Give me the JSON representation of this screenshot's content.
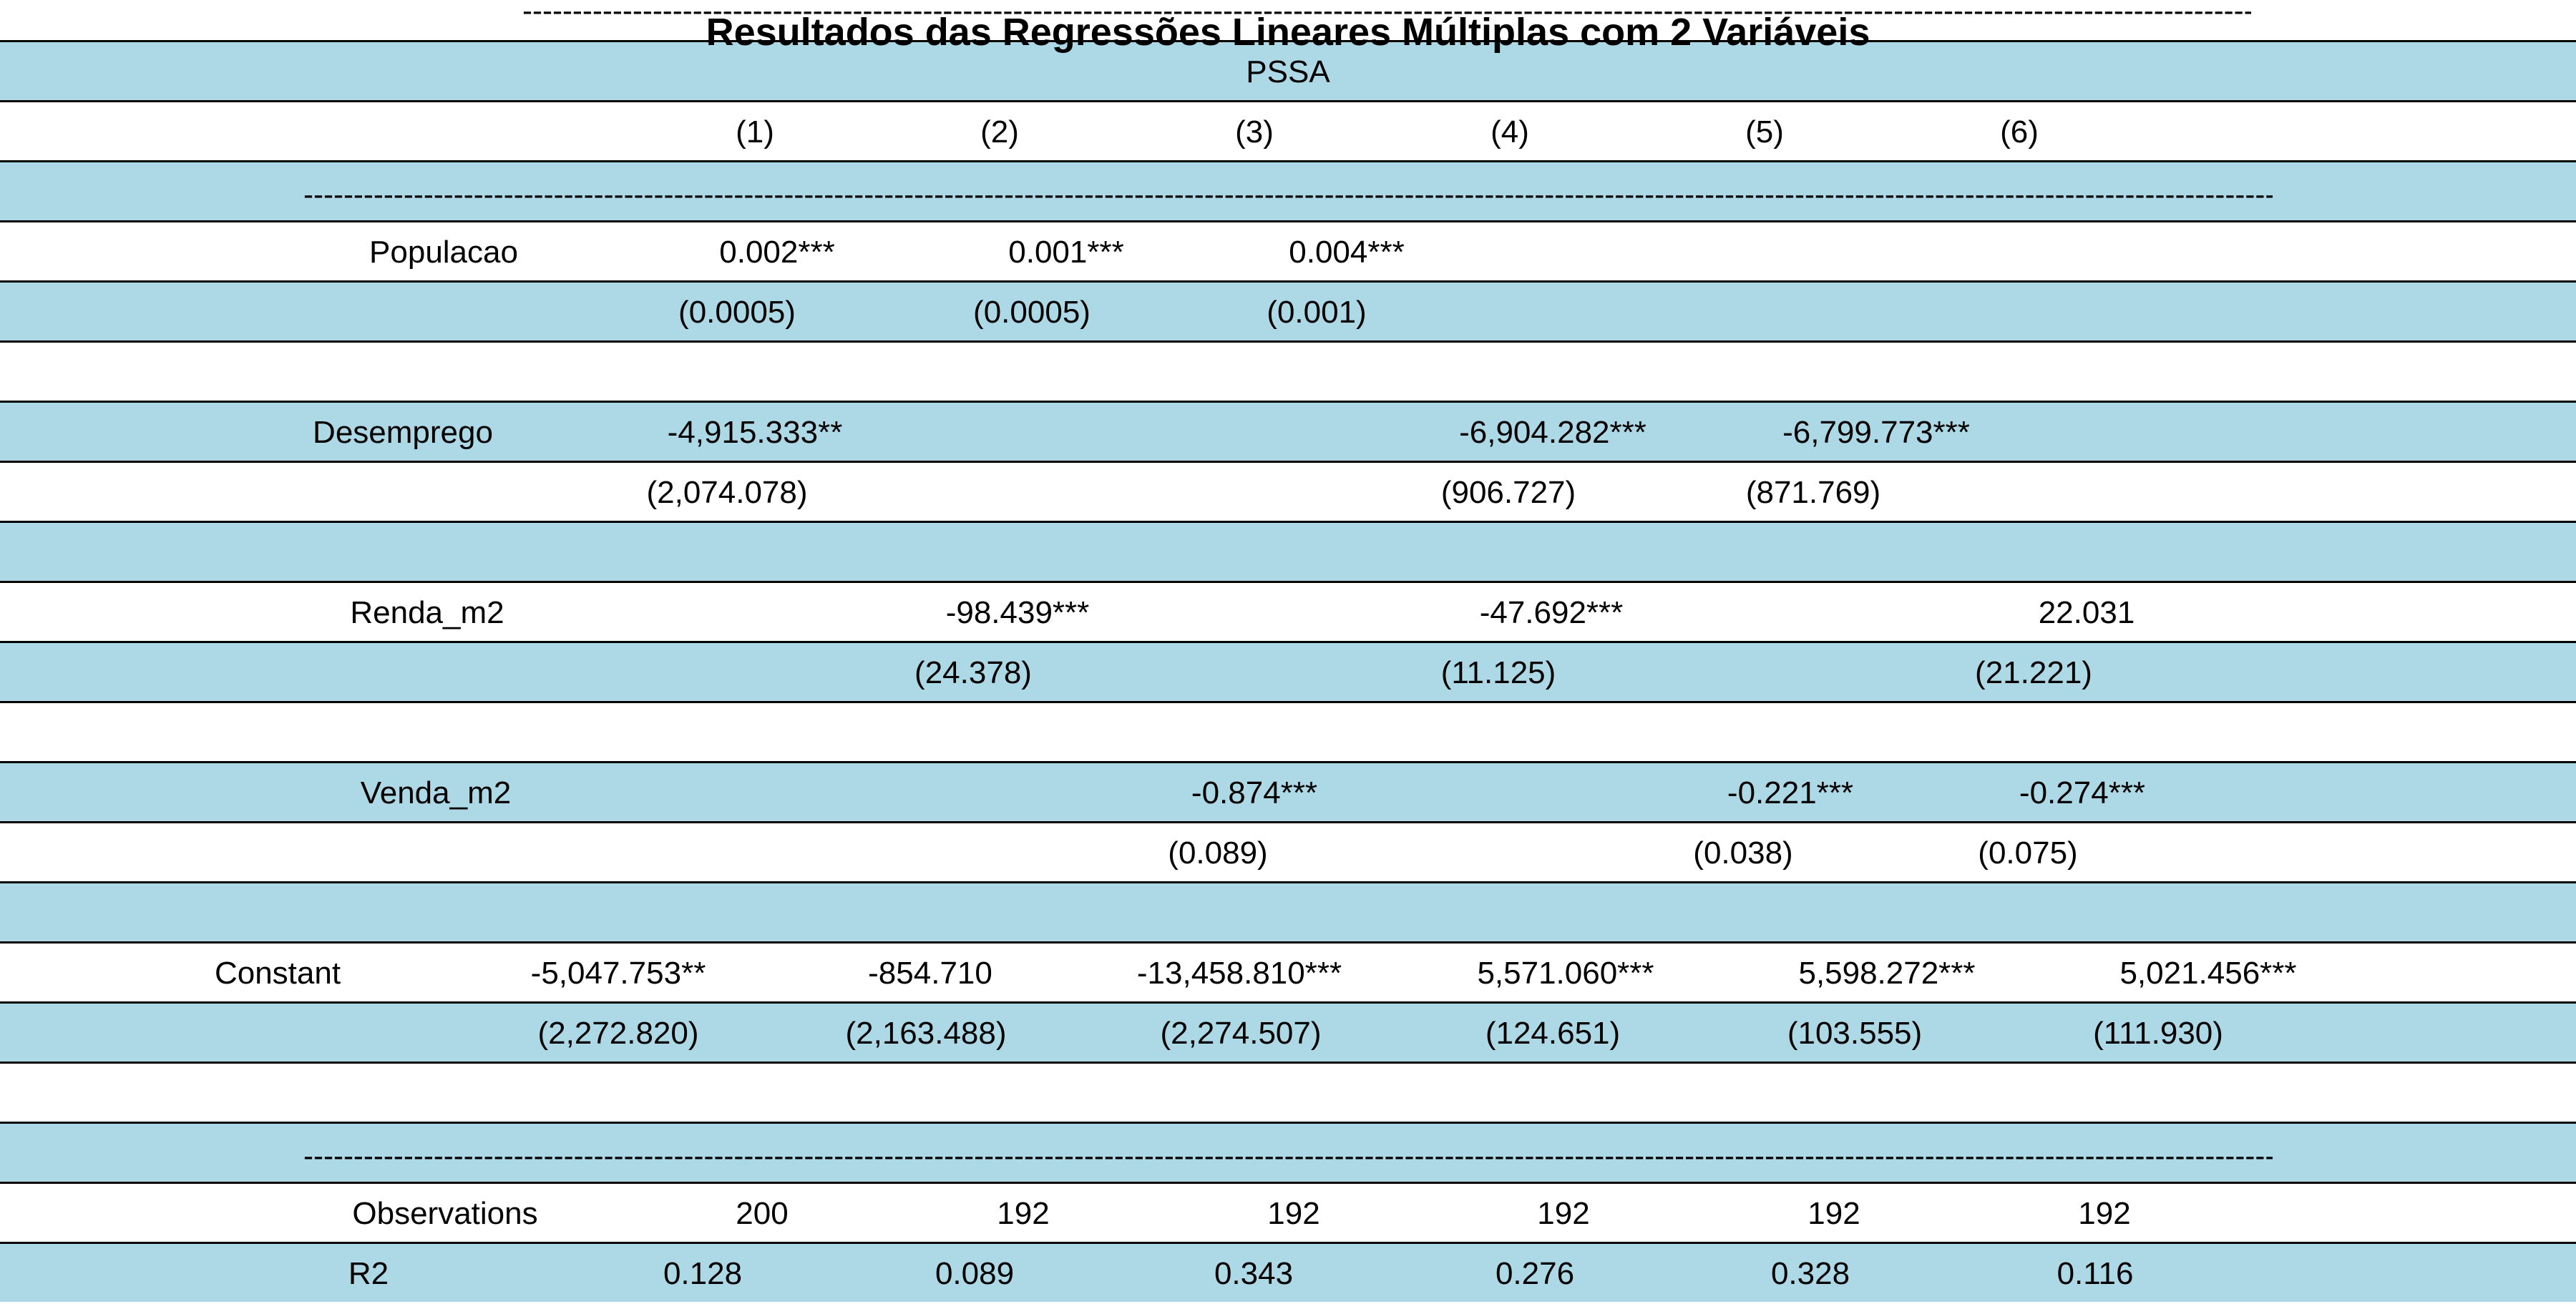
{
  "title": "Resultados das Regressões Lineares Múltiplas com 2 Variáveis",
  "dependent_variable": "PSSA",
  "separator": "--------------------------------------------------------------------------------------------------------------------------------------------------------------------------------------------------------------------------------------",
  "columns": [
    "(1)",
    "(2)",
    "(3)",
    "(4)",
    "(5)",
    "(6)"
  ],
  "rows": {
    "populacao": {
      "label": "Populacao",
      "coef": [
        "0.002***",
        "0.001***",
        "0.004***"
      ],
      "se": [
        "(0.0005)",
        "(0.0005)",
        "(0.001)"
      ]
    },
    "desemprego": {
      "label": "Desemprego",
      "coef": [
        "-4,915.333**",
        "-6,904.282***",
        "-6,799.773***"
      ],
      "se": [
        "(2,074.078)",
        "(906.727)",
        "(871.769)"
      ]
    },
    "renda": {
      "label": "Renda_m2",
      "coef": [
        "-98.439***",
        "-47.692***",
        "22.031"
      ],
      "se": [
        "(24.378)",
        "(11.125)",
        "(21.221)"
      ]
    },
    "venda": {
      "label": "Venda_m2",
      "coef": [
        "-0.874***",
        "-0.221***",
        "-0.274***"
      ],
      "se": [
        "(0.089)",
        "(0.038)",
        "(0.075)"
      ]
    },
    "constant": {
      "label": "Constant",
      "coef": [
        "-5,047.753**",
        "-854.710",
        "-13,458.810***",
        "5,571.060***",
        "5,598.272***",
        "5,021.456***"
      ],
      "se": [
        "(2,272.820)",
        "(2,163.488)",
        "(2,274.507)",
        "(124.651)",
        "(103.555)",
        "(111.930)"
      ]
    }
  },
  "stats": {
    "observations": {
      "label": "Observations",
      "values": [
        "200",
        "192",
        "192",
        "192",
        "192",
        "192"
      ]
    },
    "r2": {
      "label": "R2",
      "values": [
        "0.128",
        "0.089",
        "0.343",
        "0.276",
        "0.328",
        "0.116"
      ]
    }
  },
  "colors": {
    "band_blue": "#add8e6",
    "band_white": "#ffffff",
    "rule": "#000000"
  }
}
